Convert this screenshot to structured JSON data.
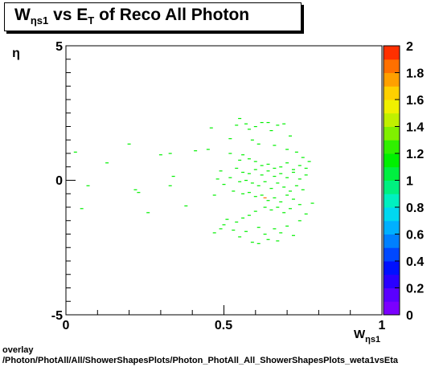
{
  "title": {
    "w_main": "W",
    "w_sub": "ηs1",
    "vs": " vs E",
    "e_sub": "T",
    "rest": " of Reco All Photon"
  },
  "footer": {
    "line1": "overlay",
    "line2": "/Photon/PhotAll/All/ShowerShapesPlots/Photon_PhotAll_All_ShowerShapesPlots_weta1vsEta"
  },
  "chart_data": {
    "type": "heatmap",
    "xlabel_main": "W",
    "xlabel_sub": "ηs1",
    "ylabel": "η",
    "xlim": [
      0,
      1
    ],
    "ylim": [
      -5,
      5
    ],
    "x_ticks": [
      "0",
      "0.5",
      "1"
    ],
    "y_ticks": [
      "5",
      "0",
      "-5"
    ],
    "colorbar": {
      "min": 0,
      "max": 2,
      "ticks": [
        "0",
        "0.2",
        "0.4",
        "0.6",
        "0.8",
        "1",
        "1.2",
        "1.4",
        "1.6",
        "1.8",
        "2"
      ],
      "colors": [
        "#7b00ff",
        "#5a00ff",
        "#2a00ff",
        "#0010ff",
        "#0048ff",
        "#0080ff",
        "#00b0ff",
        "#00d8f0",
        "#00f0c0",
        "#00f080",
        "#00f040",
        "#00f000",
        "#30f000",
        "#80f000",
        "#c0f000",
        "#f0f000",
        "#ffd000",
        "#ffa000",
        "#ff7000",
        "#ff3000"
      ]
    },
    "entry_color": "#00f000",
    "entries": [
      [
        0.03,
        1.05
      ],
      [
        0.07,
        -0.2
      ],
      [
        0.13,
        0.65
      ],
      [
        0.2,
        1.35
      ],
      [
        0.05,
        -1.05
      ],
      [
        0.26,
        -1.2
      ],
      [
        0.23,
        -0.45
      ],
      [
        0.22,
        -0.35
      ],
      [
        0.3,
        0.95
      ],
      [
        0.33,
        1.0
      ],
      [
        0.34,
        0.15
      ],
      [
        0.33,
        -0.2
      ],
      [
        0.38,
        -0.95
      ],
      [
        0.41,
        1.1
      ],
      [
        0.45,
        1.15
      ],
      [
        0.48,
        0.05
      ],
      [
        0.49,
        0.35
      ],
      [
        0.5,
        -0.15
      ],
      [
        0.47,
        -0.55
      ],
      [
        0.46,
        1.95
      ],
      [
        0.52,
        1.55
      ],
      [
        0.54,
        2.05
      ],
      [
        0.55,
        2.3
      ],
      [
        0.57,
        2.1
      ],
      [
        0.58,
        1.9
      ],
      [
        0.6,
        2.0
      ],
      [
        0.62,
        2.15
      ],
      [
        0.64,
        2.15
      ],
      [
        0.65,
        1.85
      ],
      [
        0.67,
        2.05
      ],
      [
        0.69,
        2.1
      ],
      [
        0.71,
        1.65
      ],
      [
        0.59,
        1.5
      ],
      [
        0.61,
        1.35
      ],
      [
        0.66,
        1.3
      ],
      [
        0.7,
        1.15
      ],
      [
        0.73,
        1.05
      ],
      [
        0.52,
        1.0
      ],
      [
        0.55,
        0.75
      ],
      [
        0.56,
        0.95
      ],
      [
        0.58,
        0.8
      ],
      [
        0.6,
        0.7
      ],
      [
        0.62,
        0.55
      ],
      [
        0.64,
        0.6
      ],
      [
        0.66,
        0.45
      ],
      [
        0.68,
        0.5
      ],
      [
        0.7,
        0.65
      ],
      [
        0.72,
        0.4
      ],
      [
        0.74,
        0.55
      ],
      [
        0.76,
        0.45
      ],
      [
        0.54,
        0.45
      ],
      [
        0.56,
        0.3
      ],
      [
        0.58,
        0.25
      ],
      [
        0.6,
        0.4
      ],
      [
        0.62,
        0.2
      ],
      [
        0.64,
        0.35
      ],
      [
        0.66,
        0.15
      ],
      [
        0.68,
        0.25
      ],
      [
        0.7,
        0.1
      ],
      [
        0.72,
        0.3
      ],
      [
        0.74,
        0.05
      ],
      [
        0.76,
        0.2
      ],
      [
        0.52,
        0.1
      ],
      [
        0.55,
        -0.05
      ],
      [
        0.57,
        0.0
      ],
      [
        0.59,
        -0.1
      ],
      [
        0.61,
        -0.2
      ],
      [
        0.63,
        -0.05
      ],
      [
        0.65,
        -0.3
      ],
      [
        0.67,
        -0.1
      ],
      [
        0.69,
        -0.25
      ],
      [
        0.71,
        -0.4
      ],
      [
        0.73,
        -0.2
      ],
      [
        0.75,
        -0.35
      ],
      [
        0.53,
        -0.4
      ],
      [
        0.56,
        -0.5
      ],
      [
        0.58,
        -0.45
      ],
      [
        0.6,
        -0.6
      ],
      [
        0.62,
        -0.55
      ],
      [
        0.64,
        -0.75
      ],
      [
        0.66,
        -0.65
      ],
      [
        0.68,
        -0.8
      ],
      [
        0.7,
        -0.55
      ],
      [
        0.72,
        -0.7
      ],
      [
        0.74,
        -0.9
      ],
      [
        0.63,
        -1.0
      ],
      [
        0.65,
        -1.1
      ],
      [
        0.67,
        -1.0
      ],
      [
        0.69,
        -1.2
      ],
      [
        0.71,
        -1.05
      ],
      [
        0.6,
        -1.15
      ],
      [
        0.58,
        -1.3
      ],
      [
        0.56,
        -1.4
      ],
      [
        0.54,
        -1.55
      ],
      [
        0.5,
        -1.65
      ],
      [
        0.53,
        -1.85
      ],
      [
        0.57,
        -1.9
      ],
      [
        0.61,
        -1.75
      ],
      [
        0.63,
        -2.0
      ],
      [
        0.66,
        -1.8
      ],
      [
        0.68,
        -1.95
      ],
      [
        0.7,
        -1.7
      ],
      [
        0.72,
        -2.05
      ],
      [
        0.64,
        -2.2
      ],
      [
        0.59,
        -2.3
      ],
      [
        0.55,
        -2.1
      ],
      [
        0.61,
        -2.35
      ],
      [
        0.67,
        -2.25
      ],
      [
        0.49,
        -1.8
      ],
      [
        0.47,
        -1.95
      ],
      [
        0.51,
        -1.45
      ],
      [
        0.74,
        -1.5
      ],
      [
        0.76,
        -1.25
      ],
      [
        0.78,
        -0.85
      ],
      [
        0.77,
        0.7
      ],
      [
        0.75,
        0.85
      ]
    ],
    "orange_marks": [
      [
        0.63,
        -0.65
      ]
    ]
  }
}
